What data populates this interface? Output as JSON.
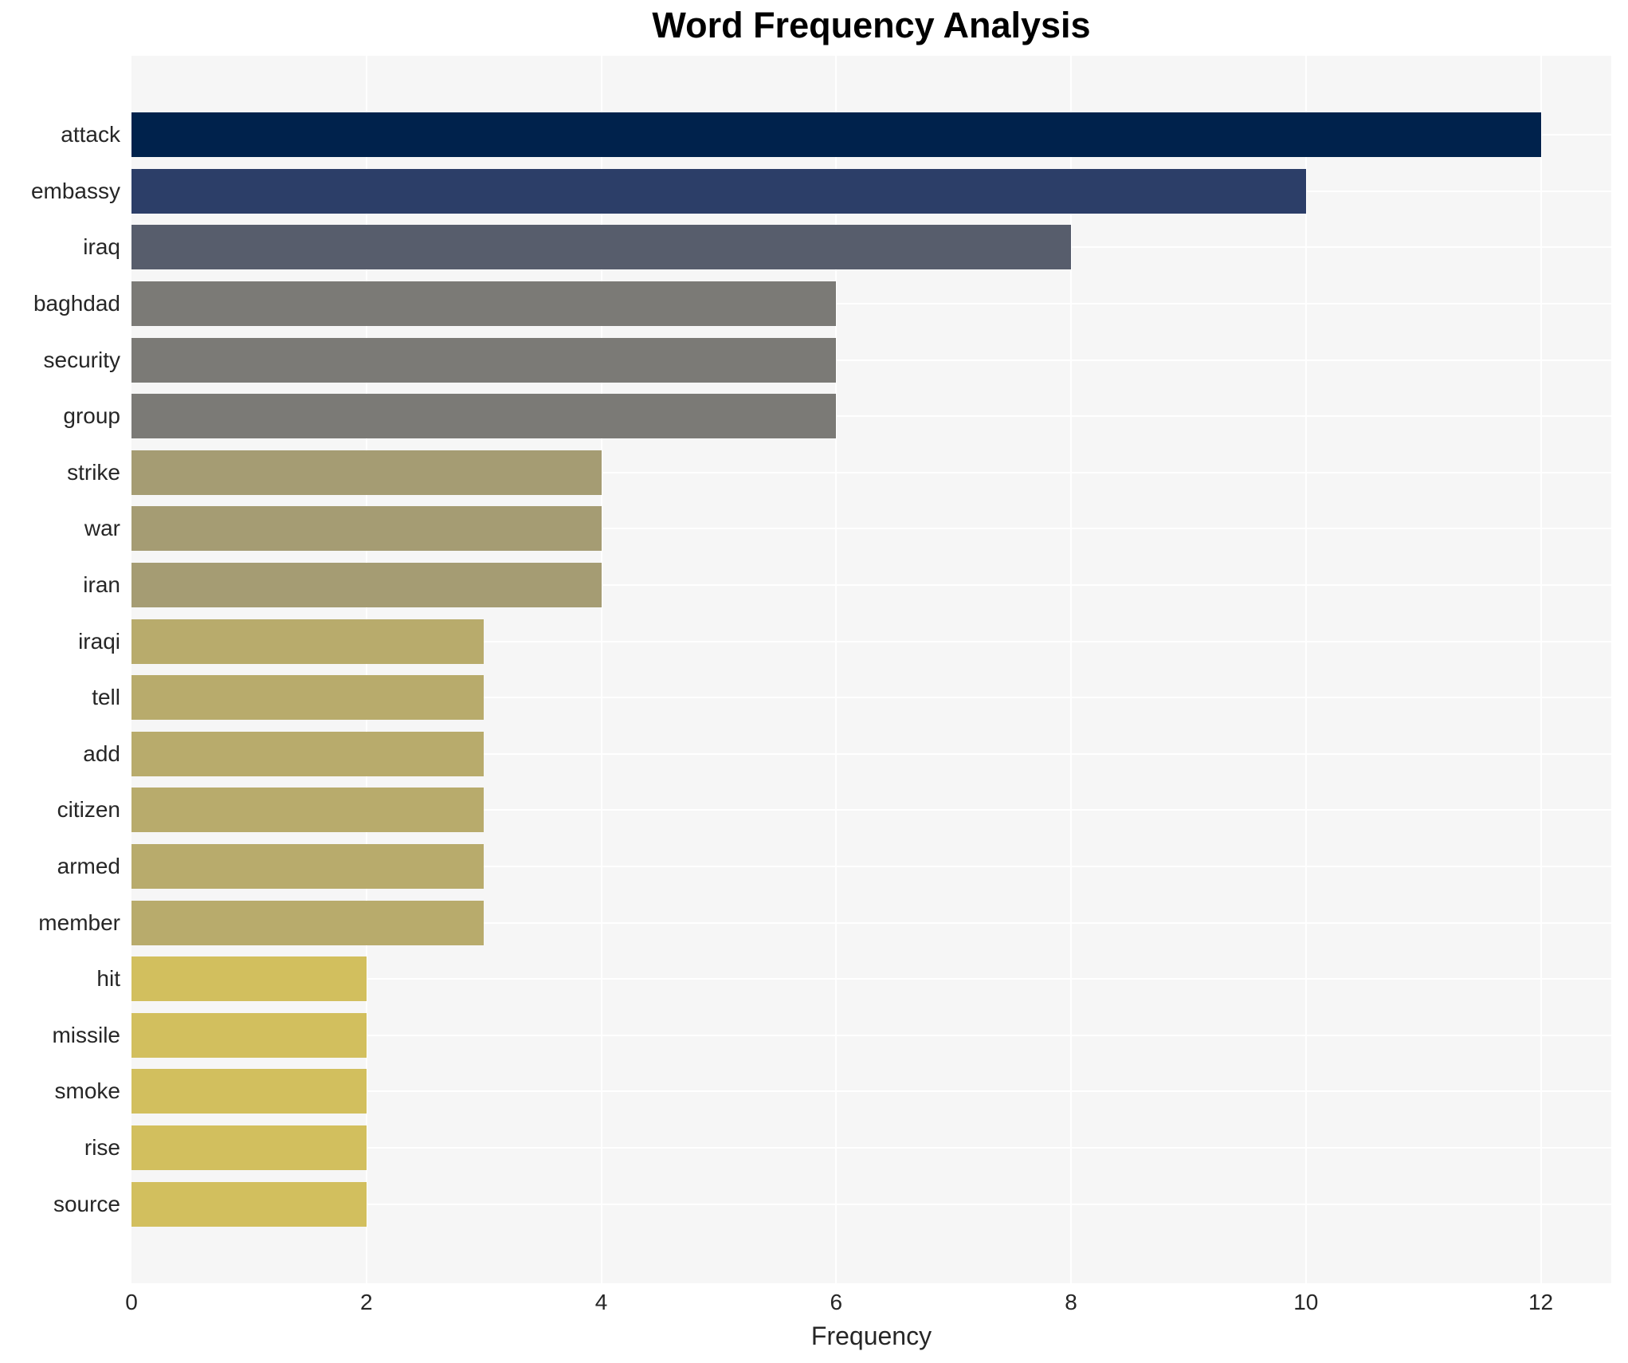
{
  "chart_data": {
    "type": "bar",
    "orientation": "horizontal",
    "title": "Word Frequency Analysis",
    "xlabel": "Frequency",
    "ylabel": "",
    "categories": [
      "attack",
      "embassy",
      "iraq",
      "baghdad",
      "security",
      "group",
      "strike",
      "war",
      "iran",
      "iraqi",
      "tell",
      "add",
      "citizen",
      "armed",
      "member",
      "hit",
      "missile",
      "smoke",
      "rise",
      "source"
    ],
    "values": [
      12,
      10,
      8,
      6,
      6,
      6,
      4,
      4,
      4,
      3,
      3,
      3,
      3,
      3,
      3,
      2,
      2,
      2,
      2,
      2
    ],
    "bar_colors": [
      "#00224c",
      "#2c3e68",
      "#575d6c",
      "#7b7a76",
      "#7b7a76",
      "#7b7a76",
      "#a59c73",
      "#a59c73",
      "#a59c73",
      "#b8ab6c",
      "#b8ab6c",
      "#b8ab6c",
      "#b8ab6c",
      "#b8ab6c",
      "#b8ab6c",
      "#d2bf5e",
      "#d2bf5e",
      "#d2bf5e",
      "#d2bf5e",
      "#d2bf5e"
    ],
    "xticks": [
      0,
      2,
      4,
      6,
      8,
      10,
      12
    ],
    "xlim": [
      0,
      12.6
    ],
    "grid": true,
    "grid_color": "#ffffff",
    "plot_background": "#f6f6f6",
    "legend": "none"
  }
}
